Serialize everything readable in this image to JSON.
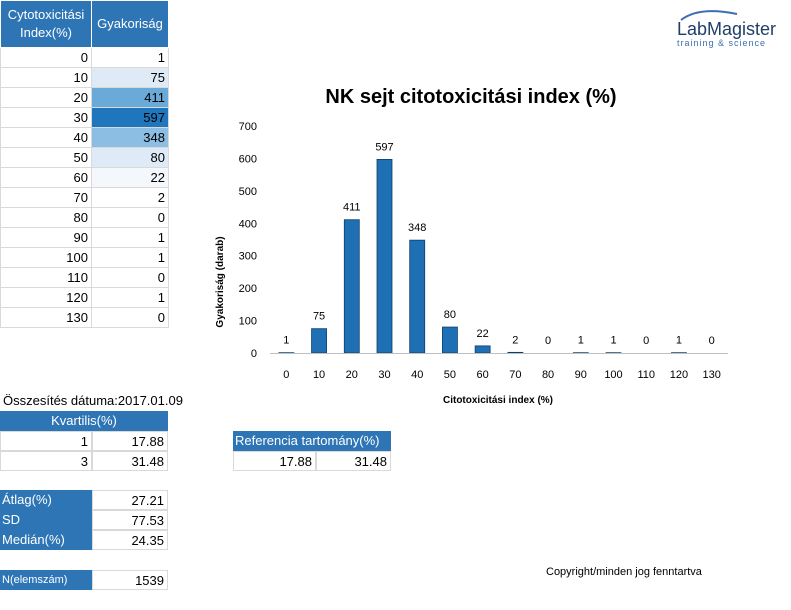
{
  "table": {
    "headers": [
      "Cytotoxicitási\nIndex(%)",
      "Gyakoriság"
    ],
    "rows": [
      {
        "index": "0",
        "freq": "1"
      },
      {
        "index": "10",
        "freq": "75"
      },
      {
        "index": "20",
        "freq": "411"
      },
      {
        "index": "30",
        "freq": "597"
      },
      {
        "index": "40",
        "freq": "348"
      },
      {
        "index": "50",
        "freq": "80"
      },
      {
        "index": "60",
        "freq": "22"
      },
      {
        "index": "70",
        "freq": "2"
      },
      {
        "index": "80",
        "freq": "0"
      },
      {
        "index": "90",
        "freq": "1"
      },
      {
        "index": "100",
        "freq": "1"
      },
      {
        "index": "110",
        "freq": "0"
      },
      {
        "index": "120",
        "freq": "1"
      },
      {
        "index": "130",
        "freq": "0"
      }
    ],
    "heat_colors": [
      "#ffffff",
      "#deebf7",
      "#6aaad8",
      "#1f76bd",
      "#8cbde2",
      "#deebf7",
      "#f4f8fc",
      "#ffffff",
      "#ffffff",
      "#ffffff",
      "#ffffff",
      "#ffffff",
      "#ffffff",
      "#ffffff"
    ]
  },
  "logo": {
    "main": "LabMagister",
    "sub": "training & science"
  },
  "summary_date": "Összesítés dátuma:2017.01.09",
  "quartiles": {
    "header": "Kvartilis(%)",
    "rows": [
      {
        "q": "1",
        "value": "17.88"
      },
      {
        "q": "3",
        "value": "31.48"
      }
    ]
  },
  "reference": {
    "header": "Referencia tartomány(%)",
    "low": "17.88",
    "high": "31.48"
  },
  "stats": {
    "mean_label": "Átlag(%)",
    "mean": "27.21",
    "sd_label": "SD",
    "sd": "77.53",
    "median_label": "Medián(%)",
    "median": "24.35",
    "n_label": "N(elemszám)",
    "n": "1539"
  },
  "copyright": "Copyright/minden jog fenntartva",
  "accent": "#2e75b6",
  "chart_data": {
    "type": "bar",
    "title": "NK sejt citotoxicitási index (%)",
    "xlabel": "Citotoxicitási index (%)",
    "ylabel": "Gyakoriság (darab)",
    "categories": [
      "0",
      "10",
      "20",
      "30",
      "40",
      "50",
      "60",
      "70",
      "80",
      "90",
      "100",
      "110",
      "120",
      "130"
    ],
    "values": [
      1,
      75,
      411,
      597,
      348,
      80,
      22,
      2,
      0,
      1,
      1,
      0,
      1,
      0
    ],
    "ylim": [
      0,
      700
    ],
    "yticks": [
      0,
      100,
      200,
      300,
      400,
      500,
      600,
      700
    ],
    "bar_color": "#1f6fb5",
    "data_labels": true,
    "grid": false,
    "legend": "none"
  }
}
